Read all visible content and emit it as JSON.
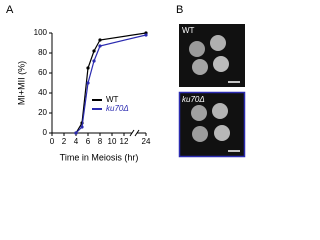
{
  "panels": {
    "a": "A",
    "b": "B"
  },
  "chart_data": {
    "type": "line",
    "xlabel": "Time in Meiosis (hr)",
    "ylabel": "MI+MII (%)",
    "x": [
      4,
      5,
      6,
      7,
      8,
      24
    ],
    "series": [
      {
        "name": "WT",
        "color": "#000000",
        "values": [
          0,
          10,
          65,
          82,
          93,
          100
        ]
      },
      {
        "name": "ku70Δ",
        "color": "#2b2bb0",
        "values": [
          0,
          6,
          50,
          72,
          87,
          98
        ]
      }
    ],
    "xlim": [
      0,
      24
    ],
    "xticks": [
      0,
      2,
      4,
      6,
      8,
      10,
      12,
      24
    ],
    "ylim": [
      0,
      100
    ],
    "yticks": [
      0,
      20,
      40,
      60,
      80,
      100
    ],
    "axis_break": true,
    "legend": "lower right"
  },
  "images": [
    {
      "label": "WT"
    },
    {
      "label": "ku70Δ"
    }
  ]
}
